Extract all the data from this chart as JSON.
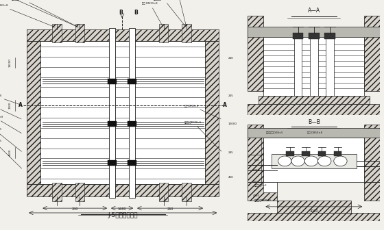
{
  "bg_color": "#f2f0eb",
  "line_color": "#1a1a1a",
  "fig_width": 5.6,
  "fig_height": 3.36,
  "dpi": 100,
  "title_left": "J-5检查井平面图",
  "title_aa": "A—A",
  "title_bb": "B—B"
}
